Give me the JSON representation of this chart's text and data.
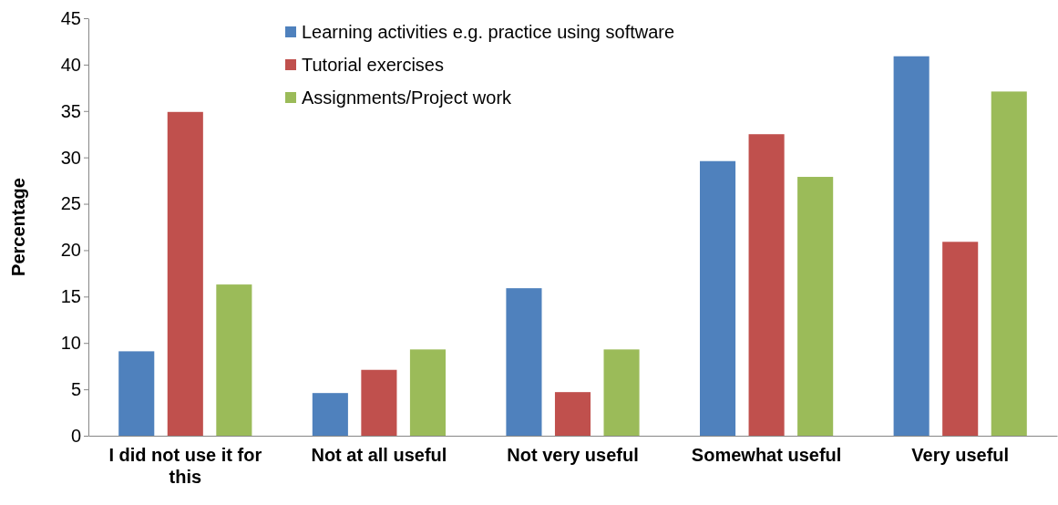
{
  "chart_data": {
    "type": "bar",
    "ylabel": "Percentage",
    "categories": [
      "I did not use it for this",
      "Not at all useful",
      "Not very useful",
      "Somewhat useful",
      "Very useful"
    ],
    "series": [
      {
        "name": "Learning activities e.g. practice using software",
        "color": "#4f81bd",
        "values": [
          9.1,
          4.6,
          15.9,
          29.6,
          40.9
        ]
      },
      {
        "name": "Tutorial exercises",
        "color": "#c0504d",
        "values": [
          34.9,
          7.1,
          4.7,
          32.5,
          20.9
        ]
      },
      {
        "name": "Assignments/Project work",
        "color": "#9bbb59",
        "values": [
          16.3,
          9.3,
          9.3,
          27.9,
          37.1
        ]
      }
    ],
    "ylim": [
      0,
      45
    ],
    "yticks": [
      0,
      5,
      10,
      15,
      20,
      25,
      30,
      35,
      40,
      45
    ],
    "grid": false,
    "legend": "top"
  }
}
